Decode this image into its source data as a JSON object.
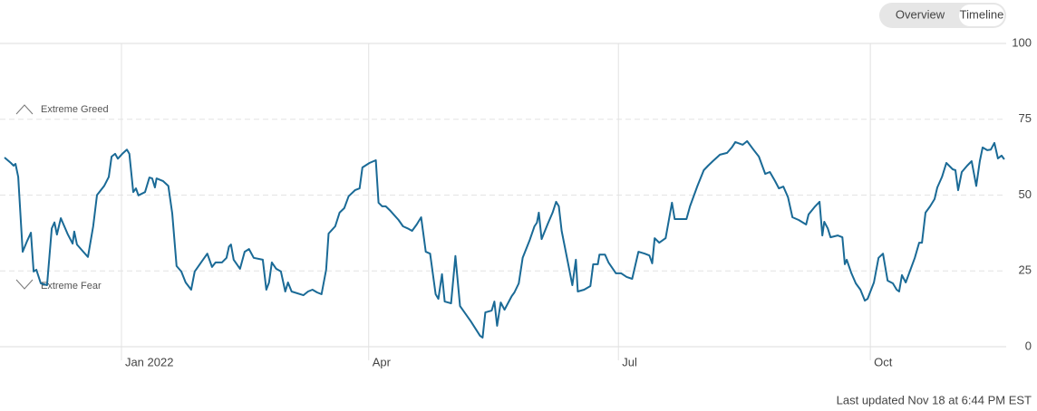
{
  "controls": [
    "Overview",
    "Timeline"
  ],
  "footer": "Last updated Nov 18 at 6:44 PM EST",
  "chart_data": {
    "type": "line",
    "annotations": [
      "Extreme Greed",
      "Extreme Fear"
    ],
    "color": "#1a6a96",
    "grid": true,
    "xlim": [
      0,
      365
    ],
    "xticks": [
      {
        "value": 42.6,
        "label": "Jan 2022"
      },
      {
        "value": 132.7,
        "label": "Apr"
      },
      {
        "value": 223.7,
        "label": "Jul"
      },
      {
        "value": 315.5,
        "label": "Oct"
      }
    ],
    "ylim": [
      0,
      100
    ],
    "yticks": [
      0,
      25,
      50,
      75,
      100
    ],
    "x": [
      0,
      2.3,
      3.3,
      4,
      5,
      6.6,
      8.3,
      9.6,
      10.6,
      11.6,
      13.2,
      15.5,
      17.2,
      18.2,
      19.1,
      20.5,
      23.1,
      24.8,
      25.4,
      26.4,
      28.7,
      30.4,
      32.3,
      33.7,
      36.3,
      38,
      39,
      40.3,
      41.3,
      42.9,
      44.6,
      45.5,
      46.9,
      47.9,
      48.8,
      51.2,
      52.8,
      53.8,
      54.8,
      55.4,
      57.8,
      59.7,
      61.1,
      62.7,
      64.4,
      66,
      68,
      69.3,
      71.6,
      73.9,
      75.6,
      76.9,
      79.2,
      80.9,
      81.8,
      82.5,
      83.5,
      85.8,
      87.5,
      89.1,
      90.8,
      94.1,
      95.4,
      96.4,
      97.4,
      99,
      100.7,
      102.3,
      103.3,
      104.6,
      108.9,
      110.6,
      112.2,
      113.9,
      115.5,
      117.2,
      118.1,
      120.5,
      122.1,
      123.8,
      125.4,
      127.7,
      129.4,
      130.4,
      133,
      135.3,
      136.3,
      137.6,
      138.9,
      140.6,
      143.6,
      145.2,
      146.9,
      148.5,
      150.2,
      151.8,
      153.5,
      155.1,
      157.1,
      158.1,
      159.4,
      160.4,
      162.7,
      164.3,
      166,
      169.9,
      171.6,
      173.3,
      174.2,
      175.2,
      177.5,
      178.5,
      179.5,
      180.8,
      182.2,
      184.8,
      185.8,
      187.4,
      188.8,
      191.4,
      193.1,
      194,
      194.7,
      195.7,
      198,
      199.7,
      201,
      202,
      203,
      205.3,
      206.9,
      208.2,
      208.9,
      211.2,
      213.5,
      214.5,
      216.2,
      216.8,
      218.8,
      220.1,
      222.8,
      224.7,
      226.7,
      228.7,
      231,
      233.3,
      235,
      236,
      236.9,
      238.6,
      240.9,
      243.2,
      244.2,
      248.5,
      249.8,
      252.5,
      254.8,
      256.4,
      258.1,
      260.7,
      263.3,
      265,
      266.3,
      269,
      270.6,
      272.9,
      274.9,
      277.2,
      278.9,
      280.8,
      282.2,
      283.8,
      285.5,
      287.1,
      289.4,
      292.1,
      293,
      295.4,
      297,
      298,
      298.7,
      300,
      301,
      303.6,
      305.3,
      306.2,
      306.9,
      308.6,
      310.2,
      311.9,
      313.5,
      314.5,
      316.8,
      318.5,
      320.1,
      321.8,
      323.7,
      325.1,
      326,
      327,
      328.4,
      331.7,
      333.3,
      334.3,
      335.6,
      337.3,
      338.9,
      339.9,
      341.6,
      343.2,
      345.5,
      346.5,
      347.5,
      348.8,
      350.8,
      352.4,
      354.1,
      355.4,
      356.4,
      358.1,
      359.4,
      360.7,
      362,
      363.3,
      364.3
    ],
    "values": [
      62.4,
      60.6,
      59.7,
      60.3,
      56,
      31.3,
      35,
      37.6,
      24.8,
      25.4,
      20.9,
      20.3,
      39,
      41,
      37,
      42.4,
      37,
      34,
      38,
      33.7,
      31.3,
      29.6,
      39.7,
      50,
      53,
      56,
      62.7,
      63.6,
      62,
      63.6,
      65,
      63.6,
      51,
      52.2,
      49.9,
      51,
      55.8,
      55.5,
      52.5,
      55.5,
      54.6,
      53,
      44,
      26.6,
      24.8,
      21.2,
      18.8,
      24.8,
      27.8,
      30.7,
      26.3,
      27.8,
      27.8,
      29.3,
      33,
      33.7,
      28.7,
      25.7,
      31.3,
      32.2,
      29.3,
      28.7,
      18.8,
      21.2,
      27.8,
      25.7,
      24.8,
      18.2,
      21.2,
      18.2,
      17,
      18.2,
      18.8,
      17.9,
      17.3,
      25.4,
      37.3,
      39.7,
      44.2,
      45.7,
      49.6,
      51.6,
      52.2,
      59.1,
      60.6,
      61.5,
      47.5,
      46.3,
      46.3,
      44.8,
      41.8,
      39.7,
      39,
      38.2,
      40.3,
      42.7,
      31.3,
      30.7,
      17.3,
      15.8,
      23.9,
      14.9,
      14.3,
      29.9,
      13.4,
      8.4,
      6,
      3.6,
      3,
      11.3,
      11.9,
      14.9,
      6.9,
      14.6,
      12.2,
      16.7,
      17.9,
      20.9,
      29.3,
      35.2,
      39.7,
      40.9,
      44.2,
      35.5,
      40.6,
      44.2,
      47.8,
      46.3,
      38.2,
      27.8,
      20.3,
      28.7,
      18.2,
      18.8,
      20,
      27.2,
      27.2,
      30.4,
      30.4,
      27.8,
      24.2,
      24.2,
      23,
      22.4,
      31.3,
      30.7,
      30.1,
      27.5,
      35.8,
      34.3,
      35.8,
      47.5,
      42.1,
      42.1,
      46.3,
      53,
      58.2,
      59.7,
      61.2,
      63.3,
      63.9,
      65.7,
      67.5,
      66.6,
      67.8,
      65,
      62.7,
      57,
      57.6,
      54.6,
      52.2,
      52.8,
      49.3,
      42.7,
      41.8,
      40.3,
      43.6,
      46.3,
      47.8,
      36.7,
      41.2,
      39,
      36.1,
      36.7,
      36.1,
      27.2,
      28.7,
      24.2,
      20.9,
      18.8,
      15.2,
      15.8,
      21.2,
      29.3,
      30.7,
      21.8,
      20.9,
      18.8,
      18.2,
      23.6,
      21.2,
      29.3,
      34.3,
      34.3,
      44.2,
      46.3,
      48.7,
      52.5,
      56,
      60.6,
      58.5,
      58.2,
      51.6,
      57.6,
      59.7,
      61.2,
      53,
      61.2,
      65.7,
      64.8,
      65,
      67.2,
      62.1,
      63,
      61.8
    ]
  }
}
